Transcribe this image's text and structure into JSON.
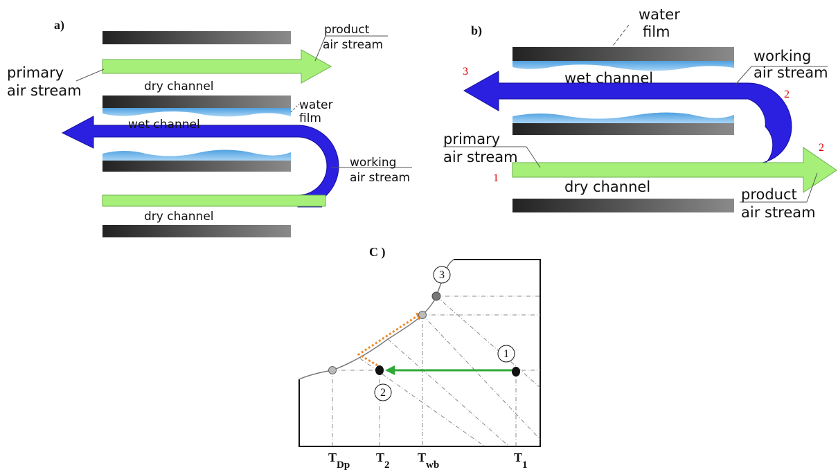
{
  "panels": {
    "a": {
      "label": "a)",
      "product_air_stream": [
        "product",
        "air stream"
      ],
      "primary_air_stream": [
        "primary",
        "air stream"
      ],
      "dry_channel_top": "dry channel",
      "water_film": [
        "water",
        "film"
      ],
      "wet_channel": "wet channel",
      "working_air_stream": [
        "working",
        "air stream"
      ],
      "dry_channel_bottom": "dry channel"
    },
    "b": {
      "label": "b)",
      "water_film": [
        "water",
        "film"
      ],
      "wet_channel": "wet channel",
      "working_air_stream": [
        "working",
        "air stream"
      ],
      "point_3": "3",
      "point_2_bend": "2",
      "primary_air_stream": [
        "primary",
        "air stream"
      ],
      "point_1": "1",
      "dry_channel": "dry channel",
      "point_2_outlet": "2",
      "product_air_stream": [
        "product",
        "air stream"
      ]
    },
    "c": {
      "label": "C )",
      "state_3": "3",
      "state_1": "1",
      "state_2": "2",
      "x_labels": [
        {
          "main": "T",
          "sub": "Dp"
        },
        {
          "main": "T",
          "sub": "2"
        },
        {
          "main": "T",
          "sub": "wb"
        },
        {
          "main": "T",
          "sub": "1"
        }
      ]
    }
  }
}
